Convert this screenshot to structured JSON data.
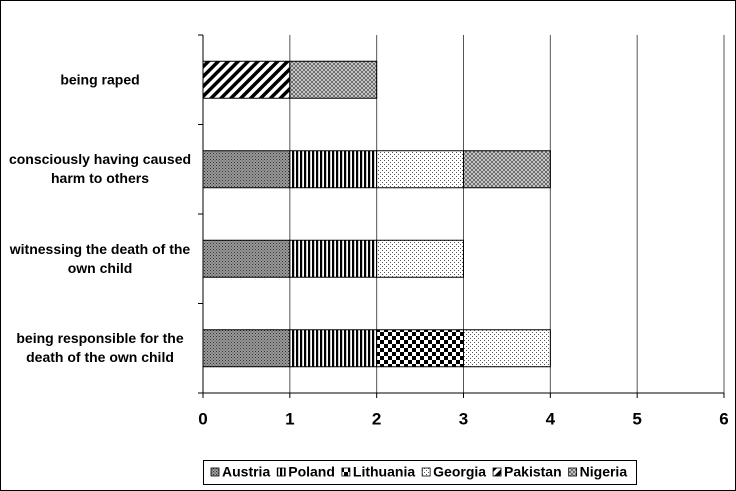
{
  "chart_data": {
    "type": "bar",
    "orientation": "horizontal",
    "stacked": true,
    "categories": [
      "being raped",
      "consciously having caused  harm to others",
      "witnessing the death of the own child",
      "being responsible for the death of the own child"
    ],
    "series": [
      {
        "name": "Austria",
        "values": [
          0,
          1,
          1,
          1
        ]
      },
      {
        "name": "Poland",
        "values": [
          0,
          1,
          1,
          1
        ]
      },
      {
        "name": "Lithuania",
        "values": [
          0,
          0,
          0,
          1
        ]
      },
      {
        "name": "Georgia",
        "values": [
          0,
          1,
          1,
          1
        ]
      },
      {
        "name": "Pakistan",
        "values": [
          1,
          0,
          0,
          0
        ]
      },
      {
        "name": "Nigeria",
        "values": [
          1,
          1,
          0,
          0
        ]
      }
    ],
    "xlim": [
      0,
      6
    ],
    "xticks": [
      0,
      1,
      2,
      3,
      4,
      5,
      6
    ],
    "grid": true,
    "legend": "bottom"
  }
}
